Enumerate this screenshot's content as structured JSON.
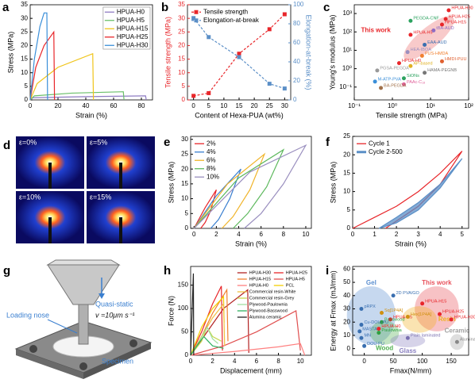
{
  "chart_data": [
    {
      "type": "line",
      "panel_label": "a",
      "xlabel": "Strain (%)",
      "ylabel": "Stress (MPa)",
      "xlim": [
        0,
        88
      ],
      "xticks": [
        0,
        20,
        40,
        60,
        80
      ],
      "ylim": [
        0,
        35
      ],
      "yticks": [
        0,
        5,
        10,
        15,
        20,
        25,
        30,
        35
      ],
      "legend": "upper right",
      "legend_frame": true,
      "series": [
        {
          "name": "HPUA-H0",
          "color": "#8e7cc3",
          "x": [
            0,
            2,
            40,
            83,
            83.5
          ],
          "values": [
            0,
            0.8,
            1.2,
            1.5,
            0
          ]
        },
        {
          "name": "HPUA-H5",
          "color": "#6abf69",
          "x": [
            0,
            3,
            30,
            67,
            67.5
          ],
          "values": [
            0,
            1.5,
            2.5,
            3,
            0
          ]
        },
        {
          "name": "HPUA-H15",
          "color": "#f0c419",
          "x": [
            0,
            5,
            20,
            45,
            45.5
          ],
          "values": [
            0,
            6,
            12,
            17,
            0
          ]
        },
        {
          "name": "HPUA-H25",
          "color": "#e8262a",
          "x": [
            0,
            4,
            10,
            17,
            17.5
          ],
          "values": [
            0,
            12,
            20,
            25,
            0
          ]
        },
        {
          "name": "HPUA-H30",
          "color": "#3a8fd9",
          "x": [
            0,
            3,
            7,
            10,
            12,
            12.5
          ],
          "values": [
            0,
            15,
            27,
            32,
            32,
            0
          ]
        }
      ]
    },
    {
      "type": "line",
      "panel_label": "b",
      "xlabel": "Content of Hexa-PUA (wt%)",
      "ylabel": "Tensile strength (MPa)",
      "y2label": "Elongation-at-break (%)",
      "xlim": [
        -2,
        32
      ],
      "xticks": [
        0,
        5,
        10,
        15,
        20,
        25,
        30
      ],
      "ylim": [
        0,
        35
      ],
      "yticks": [
        0,
        5,
        10,
        15,
        20,
        25,
        30,
        35
      ],
      "y2lim": [
        0,
        100
      ],
      "y2ticks": [
        0,
        20,
        40,
        60,
        80,
        100
      ],
      "legend": "upper left",
      "series": [
        {
          "name": "Tensile strength",
          "color": "#e8262a",
          "dashed": true,
          "marker": true,
          "x": [
            0,
            5,
            15,
            25,
            30
          ],
          "values": [
            1.5,
            2.5,
            17,
            26,
            31.5
          ]
        },
        {
          "name": "Elongation-at-break",
          "color": "#5b8fc7",
          "dashed": true,
          "marker": true,
          "axis": "y2",
          "x": [
            0,
            5,
            15,
            25,
            30
          ],
          "values": [
            86,
            66,
            45,
            17,
            12
          ]
        }
      ]
    },
    {
      "type": "scatter",
      "panel_label": "c",
      "xlabel": "Tensile strength (MPa)",
      "ylabel": "Young's modulus (MPa)",
      "log": true,
      "xlim": [
        0.1,
        100
      ],
      "xticks": [
        {
          "value": 0.1,
          "label": "10⁻¹"
        },
        {
          "value": 1,
          "label": "10⁰"
        },
        {
          "value": 10,
          "label": "10¹"
        },
        {
          "value": 100,
          "label": "10²"
        }
      ],
      "ylim": [
        0.02,
        3000
      ],
      "yticks": [
        {
          "value": 0.1,
          "label": "10⁻¹"
        },
        {
          "value": 1,
          "label": "10⁰"
        },
        {
          "value": 10,
          "label": "10¹"
        },
        {
          "value": 100,
          "label": "10²"
        },
        {
          "value": 1000,
          "label": "10³"
        }
      ],
      "annotations": [
        {
          "text": "This work",
          "x": 0.9,
          "y": 120,
          "color": "#e8262a"
        }
      ],
      "points": [
        {
          "label": "PEGDA-CNF",
          "x": 3,
          "y": 400,
          "color": "#2ca25f"
        },
        {
          "label": "HPUA-H30",
          "x": 30,
          "y": 1500,
          "color": "#e8262a"
        },
        {
          "label": "HPUA-H25",
          "x": 25,
          "y": 500,
          "color": "#e8262a"
        },
        {
          "label": "HPUA-H15",
          "x": 20,
          "y": 250,
          "color": "#e8262a"
        },
        {
          "label": "tBA-AUD",
          "x": 12,
          "y": 120,
          "color": "#8e6cc3"
        },
        {
          "label": "HPUA-H5",
          "x": 3,
          "y": 70,
          "color": "#e8262a"
        },
        {
          "label": "EAA-AUD",
          "x": 7,
          "y": 20,
          "color": "#3a6fb0"
        },
        {
          "label": "HEA-IBOA",
          "x": 2.5,
          "y": 8,
          "color": "#9a8fbf"
        },
        {
          "label": "PUS-HMDA",
          "x": 6,
          "y": 5,
          "color": "#f08030"
        },
        {
          "label": "HPUA-H0",
          "x": 1.5,
          "y": 2,
          "color": "#e8262a"
        },
        {
          "label": "HMDI-PUU",
          "x": 20,
          "y": 2.5,
          "color": "#e06030"
        },
        {
          "label": "AP-based",
          "x": 3,
          "y": 1.4,
          "color": "#e0b020"
        },
        {
          "label": "PGSA-PEGDA",
          "x": 0.4,
          "y": 0.8,
          "color": "#999999"
        },
        {
          "label": "HAMA-PEGNB",
          "x": 7,
          "y": 0.6,
          "color": "#777777"
        },
        {
          "label": "SiONs",
          "x": 2,
          "y": 0.3,
          "color": "#2ca25f"
        },
        {
          "label": "M-ATP-PVA",
          "x": 0.35,
          "y": 0.2,
          "color": "#3a8fd9"
        },
        {
          "label": "PAAc-C₁₈",
          "x": 2,
          "y": 0.14,
          "color": "#e0609a"
        },
        {
          "label": "BA-PEGDA",
          "x": 0.5,
          "y": 0.09,
          "color": "#a0704a"
        }
      ]
    },
    {
      "type": "line",
      "panel_label": "e",
      "xlabel": "Strain (%)",
      "ylabel": "Stress (MPa)",
      "xlim": [
        -0.3,
        10.5
      ],
      "xticks": [
        0,
        2,
        4,
        6,
        8,
        10
      ],
      "ylim": [
        0,
        31
      ],
      "yticks": [
        0,
        5,
        10,
        15,
        20,
        25,
        30
      ],
      "legend": "upper left",
      "series": [
        {
          "name": "2%",
          "color": "#e8262a",
          "x": [
            0,
            1,
            2,
            1.5,
            1,
            0.6
          ],
          "values": [
            0,
            7,
            13,
            6,
            2,
            0
          ]
        },
        {
          "name": "4%",
          "color": "#3a7fd0",
          "x": [
            0,
            2,
            4.2,
            3.2,
            2.2,
            1.5
          ],
          "values": [
            0,
            11,
            20,
            10,
            3,
            0
          ]
        },
        {
          "name": "6%",
          "color": "#f0b429",
          "x": [
            0,
            3,
            6.3,
            5,
            3.5,
            2.5
          ],
          "values": [
            0,
            15,
            25,
            13,
            4,
            0
          ]
        },
        {
          "name": "8%",
          "color": "#5cb85c",
          "x": [
            0,
            4,
            8,
            6.5,
            4.8,
            3.5
          ],
          "values": [
            0,
            17,
            26.5,
            14,
            5,
            0
          ]
        },
        {
          "name": "10%",
          "color": "#9a8fbf",
          "x": [
            0,
            5,
            10,
            8,
            6,
            4.5
          ],
          "values": [
            0,
            19,
            28,
            15,
            5,
            0
          ]
        }
      ]
    },
    {
      "type": "line",
      "panel_label": "f",
      "xlabel": "Strain (%)",
      "ylabel": "Stress (MPa)",
      "xlim": [
        0,
        5.3
      ],
      "xticks": [
        0,
        1,
        2,
        3,
        4,
        5
      ],
      "ylim": [
        0,
        25
      ],
      "yticks": [
        0,
        5,
        10,
        15,
        20,
        25
      ],
      "legend": "upper left",
      "series": [
        {
          "name": "Cycle 1",
          "color": "#e8262a",
          "x": [
            0,
            1,
            2,
            3,
            4,
            5,
            4,
            3,
            2,
            1.5
          ],
          "values": [
            0,
            3,
            6,
            10,
            15,
            21,
            12,
            6,
            2,
            0
          ]
        },
        {
          "name": "Cycle 2-500",
          "color": "#5b8fc7",
          "fill": true,
          "x": [
            1.2,
            2,
            3,
            4,
            5,
            4,
            3,
            2,
            1.2
          ],
          "values": [
            0,
            3,
            7,
            12,
            19,
            11,
            5,
            1.5,
            0
          ]
        }
      ]
    },
    {
      "type": "line",
      "panel_label": "h",
      "xlabel": "Displacement (mm)",
      "ylabel": "Force (N)",
      "xlim": [
        0,
        11
      ],
      "xticks": [
        0,
        2,
        4,
        6,
        8,
        10
      ],
      "ylim": [
        0,
        190
      ],
      "yticks": [
        0,
        50,
        100,
        150
      ],
      "legend": "upper right",
      "series": [
        {
          "name": "HPUA-H30",
          "color": "#b22222",
          "x": [
            0,
            1.5,
            3,
            5.2,
            5.3
          ],
          "values": [
            0,
            50,
            100,
            140,
            5
          ]
        },
        {
          "name": "HPUA-H25",
          "color": "#e8262a",
          "x": [
            0,
            1,
            2,
            2.8,
            2.9
          ],
          "values": [
            0,
            50,
            110,
            148,
            10
          ]
        },
        {
          "name": "HPUA-H15",
          "color": "#f08030",
          "x": [
            0,
            1,
            2,
            3.3,
            3.4
          ],
          "values": [
            0,
            40,
            90,
            140,
            30
          ]
        },
        {
          "name": "HPUA-H5",
          "color": "#e05050",
          "x": [
            0,
            3,
            6,
            9.6,
            10
          ],
          "values": [
            0,
            20,
            50,
            95,
            10
          ]
        },
        {
          "name": "HPUA-H0",
          "color": "#ff8080",
          "x": [
            0,
            4,
            8,
            10,
            10.4
          ],
          "values": [
            0,
            8,
            18,
            25,
            0
          ]
        },
        {
          "name": "PCL",
          "color": "#f5d000",
          "x": [
            0,
            1,
            2,
            3,
            3.05
          ],
          "values": [
            0,
            60,
            100,
            125,
            70
          ]
        },
        {
          "name": "Commercial resin-White",
          "color": "#f0c040",
          "x": [
            0,
            1,
            2,
            3,
            3.1
          ],
          "values": [
            0,
            40,
            80,
            110,
            20
          ]
        },
        {
          "name": "Commercial resin-Grey",
          "color": "#c8d850",
          "x": [
            0,
            1,
            1.5,
            2,
            2.8
          ],
          "values": [
            0,
            30,
            60,
            40,
            30
          ]
        },
        {
          "name": "Plywood-Paulownia",
          "color": "#a0e0a0",
          "x": [
            0,
            0.8,
            1.5,
            2,
            2.5
          ],
          "values": [
            0,
            30,
            60,
            35,
            25
          ]
        },
        {
          "name": "Plywood-Basswood",
          "color": "#30b060",
          "x": [
            0,
            0.7,
            1.2,
            2,
            3
          ],
          "values": [
            0,
            25,
            40,
            20,
            15
          ]
        },
        {
          "name": "Alumina ceramic",
          "color": "#222222",
          "x": [
            0,
            0.25,
            0.28
          ],
          "values": [
            0,
            175,
            0
          ]
        }
      ]
    },
    {
      "type": "scatter",
      "panel_label": "i",
      "xlabel": "Fmax(N/mm)",
      "ylabel": "Energy at Fmax (mJ/mm)",
      "xlim": [
        -20,
        180
      ],
      "xticks": [
        0,
        50,
        100,
        150
      ],
      "ylim": [
        -5,
        62
      ],
      "yticks": [
        0,
        10,
        20,
        30,
        40,
        50,
        60
      ],
      "regions": [
        {
          "label": "Gel",
          "color": "#5b8fd0",
          "cx": 12,
          "cy": 25,
          "rx": 42,
          "ry": 22,
          "label_side": "top"
        },
        {
          "label": "This work",
          "color": "#e8505a",
          "cx": 125,
          "cy": 30,
          "rx": 38,
          "ry": 17,
          "label_side": "top"
        },
        {
          "label": "Resin",
          "color": "#f0b020",
          "cx": 95,
          "cy": 22,
          "rx": 30,
          "ry": 10,
          "label_side": "right"
        },
        {
          "label": "Wood",
          "color": "#50b050",
          "cx": 35,
          "cy": 12,
          "rx": 25,
          "ry": 9,
          "label_side": "bottom"
        },
        {
          "label": "Glass",
          "color": "#8a80c0",
          "cx": 75,
          "cy": 6,
          "rx": 30,
          "ry": 5,
          "label_side": "bottom"
        },
        {
          "label": "Ceramic",
          "color": "#a0a0a0",
          "cx": 160,
          "cy": 5,
          "rx": 12,
          "ry": 6,
          "label_side": "top"
        }
      ],
      "points": [
        {
          "label": "HPUA-H15",
          "x": 100,
          "y": 34,
          "color": "#e8262a"
        },
        {
          "label": "HPUA-H25",
          "x": 130,
          "y": 26,
          "color": "#e8262a"
        },
        {
          "label": "HPUA-H30",
          "x": 150,
          "y": 22,
          "color": "#e8262a"
        },
        {
          "label": "HPUA-H5",
          "x": 45,
          "y": 22,
          "color": "#e8262a"
        },
        {
          "label": "HPUA-H0",
          "x": 25,
          "y": 15,
          "color": "#e8262a"
        },
        {
          "label": "2D PVA/GO",
          "x": 50,
          "y": 40,
          "color": "#3a6fb0"
        },
        {
          "label": "pRPX",
          "x": -5,
          "y": 30,
          "color": "#3a6fb0"
        },
        {
          "label": "Sq[1P4A]",
          "x": 30,
          "y": 27,
          "color": "#d09010"
        },
        {
          "label": "Hex[1P4A]",
          "x": 75,
          "y": 24,
          "color": "#d09010"
        },
        {
          "label": "Basswood",
          "x": 30,
          "y": 20,
          "color": "#30a040"
        },
        {
          "label": "Cu-DOU-PU",
          "x": -5,
          "y": 18,
          "color": "#3a6fb0"
        },
        {
          "label": "Paulownia",
          "x": 25,
          "y": 12,
          "color": "#30a040"
        },
        {
          "label": "MASTA",
          "x": -8,
          "y": 13,
          "color": "#3a6fb0"
        },
        {
          "label": "MN",
          "x": -5,
          "y": 8,
          "color": "#3a6fb0"
        },
        {
          "label": "DOU-PU",
          "x": 0,
          "y": 2,
          "color": "#3a6fb0"
        },
        {
          "label": "Plain laminated",
          "x": 75,
          "y": 8,
          "color": "#7a70b0"
        },
        {
          "label": "Alumina",
          "x": 160,
          "y": 5,
          "color": "#888888"
        }
      ]
    }
  ],
  "figures": {
    "d": {
      "panel_label": "d",
      "labels": [
        "ε=0%",
        "ε=5%",
        "ε=10%",
        "ε=15%"
      ]
    },
    "g": {
      "panel_label": "g",
      "quasi_static": "Quasi-static",
      "speed": "v =10μm s⁻¹",
      "loading_nose": "Loading nose",
      "specimen": "Specimen"
    }
  }
}
